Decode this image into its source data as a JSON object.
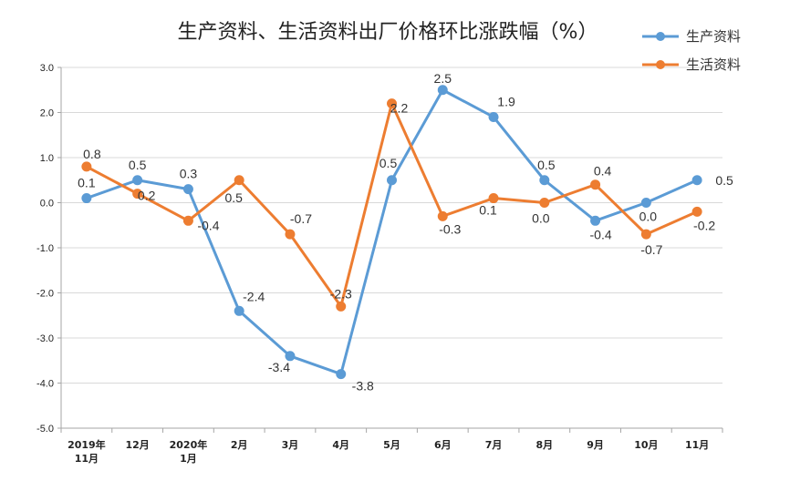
{
  "chart_data": {
    "type": "line",
    "title": "生产资料、生活资料出厂价格环比涨跌幅（%）",
    "categories": [
      [
        "2019年",
        "11月"
      ],
      [
        "12月"
      ],
      [
        "2020年",
        "1月"
      ],
      [
        "2月"
      ],
      [
        "3月"
      ],
      [
        "4月"
      ],
      [
        "5月"
      ],
      [
        "6月"
      ],
      [
        "7月"
      ],
      [
        "8月"
      ],
      [
        "9月"
      ],
      [
        "10月"
      ],
      [
        "11月"
      ]
    ],
    "series": [
      {
        "name": "生产资料",
        "color": "#5B9BD5",
        "values": [
          0.1,
          0.5,
          0.3,
          -2.4,
          -3.4,
          -3.8,
          0.5,
          2.5,
          1.9,
          0.5,
          -0.4,
          0.0,
          0.5
        ]
      },
      {
        "name": "生活资料",
        "color": "#ED7D31",
        "values": [
          0.8,
          0.2,
          -0.4,
          0.5,
          -0.7,
          -2.3,
          2.2,
          -0.3,
          0.1,
          0.0,
          0.4,
          -0.7,
          -0.2
        ]
      }
    ],
    "data_labels": [
      [
        "0.1",
        "0.5",
        "0.3",
        "-2.4",
        "-3.4",
        "-3.8",
        "0.5",
        "2.5",
        "1.9",
        "0.5",
        "-0.4",
        "0.0",
        "0.5"
      ],
      [
        "0.8",
        "0.2",
        "-0.4",
        "0.5",
        "-0.7",
        "-2.3",
        "2.2",
        "-0.3",
        "0.1",
        "0.0",
        "0.4",
        "-0.7",
        "-0.2"
      ]
    ],
    "yticks": [
      "3.0",
      "2.0",
      "1.0",
      "0.0",
      "-1.0",
      "-2.0",
      "-3.0",
      "-4.0",
      "-5.0"
    ],
    "ylim": [
      -5,
      3
    ],
    "grid": "horizontal",
    "legend_position": "top-right"
  }
}
